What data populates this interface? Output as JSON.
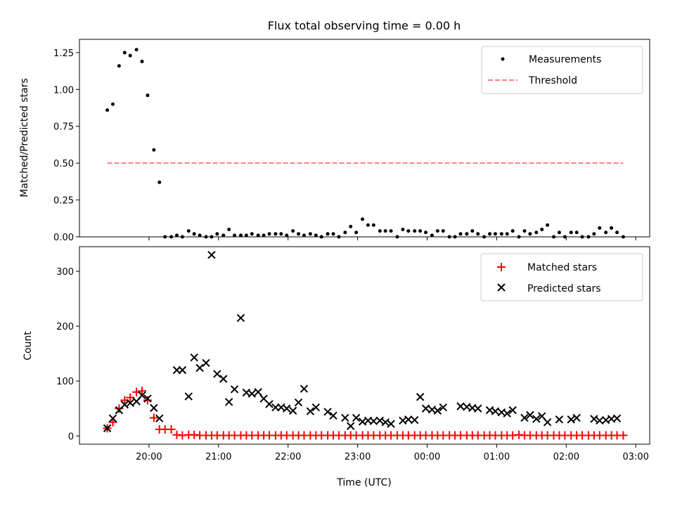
{
  "chart_data": [
    {
      "type": "scatter",
      "title": "Flux total observing time = 0.00 h",
      "xlabel": "",
      "ylabel": "Matched/Predicted stars",
      "ylim": [
        0,
        1.34
      ],
      "yticks": [
        0.0,
        0.25,
        0.5,
        0.75,
        1.0,
        1.25
      ],
      "yticklabels": [
        "0.00",
        "0.25",
        "0.50",
        "0.75",
        "1.00",
        "1.25"
      ],
      "xlim_hours": [
        19.0,
        27.2
      ],
      "xticks_hours": [
        20,
        21,
        22,
        23,
        24,
        25,
        26,
        27
      ],
      "legend_position": "top-right",
      "series": [
        {
          "name": "Measurements",
          "kind": "dots",
          "color": "#000000",
          "x": [
            19.4,
            19.48,
            19.57,
            19.65,
            19.73,
            19.82,
            19.9,
            19.98,
            20.07,
            20.15,
            20.23,
            20.32,
            20.4,
            20.48,
            20.57,
            20.65,
            20.73,
            20.82,
            20.9,
            20.98,
            21.07,
            21.15,
            21.23,
            21.32,
            21.4,
            21.48,
            21.57,
            21.65,
            21.73,
            21.82,
            21.9,
            21.98,
            22.07,
            22.15,
            22.23,
            22.32,
            22.4,
            22.48,
            22.57,
            22.65,
            22.73,
            22.82,
            22.9,
            22.98,
            23.07,
            23.15,
            23.23,
            23.32,
            23.4,
            23.48,
            23.57,
            23.65,
            23.73,
            23.82,
            23.9,
            23.98,
            24.07,
            24.15,
            24.23,
            24.32,
            24.4,
            24.48,
            24.57,
            24.65,
            24.73,
            24.82,
            24.9,
            24.98,
            25.07,
            25.15,
            25.23,
            25.32,
            25.4,
            25.48,
            25.57,
            25.65,
            25.73,
            25.82,
            25.9,
            25.98,
            26.07,
            26.15,
            26.23,
            26.32,
            26.4,
            26.48,
            26.57,
            26.65,
            26.73,
            26.82
          ],
          "y": [
            0.86,
            0.9,
            1.16,
            1.25,
            1.23,
            1.27,
            1.19,
            0.96,
            0.59,
            0.37,
            0.0,
            0.0,
            0.01,
            0.0,
            0.04,
            0.02,
            0.01,
            0.0,
            0.0,
            0.02,
            0.01,
            0.05,
            0.01,
            0.01,
            0.01,
            0.02,
            0.01,
            0.01,
            0.02,
            0.02,
            0.02,
            0.01,
            0.04,
            0.02,
            0.01,
            0.02,
            0.01,
            0.0,
            0.02,
            0.02,
            0.0,
            0.03,
            0.07,
            0.03,
            0.12,
            0.08,
            0.08,
            0.04,
            0.04,
            0.04,
            0.0,
            0.05,
            0.04,
            0.04,
            0.04,
            0.03,
            0.01,
            0.04,
            0.04,
            0.0,
            0.0,
            0.02,
            0.02,
            0.04,
            0.02,
            0.0,
            0.02,
            0.02,
            0.02,
            0.02,
            0.04,
            0.0,
            0.04,
            0.02,
            0.03,
            0.05,
            0.08,
            0.0,
            0.03,
            0.0,
            0.03,
            0.03,
            0.0,
            0.0,
            0.02,
            0.06,
            0.03,
            0.06,
            0.03,
            0.0
          ]
        },
        {
          "name": "Threshold",
          "kind": "dashed-line",
          "color": "#ff7f7f",
          "x": [
            19.4,
            26.82
          ],
          "y": [
            0.5,
            0.5
          ]
        }
      ]
    },
    {
      "type": "scatter",
      "title": "",
      "xlabel": "Time (UTC)",
      "ylabel": "Count",
      "ylim": [
        -15,
        345
      ],
      "yticks": [
        0,
        100,
        200,
        300
      ],
      "yticklabels": [
        "0",
        "100",
        "200",
        "300"
      ],
      "xlim_hours": [
        19.0,
        27.2
      ],
      "xticks_hours": [
        20,
        21,
        22,
        23,
        24,
        25,
        26,
        27
      ],
      "xticklabels": [
        "20:00",
        "21:00",
        "22:00",
        "23:00",
        "00:00",
        "01:00",
        "02:00",
        "03:00"
      ],
      "legend_position": "top-right",
      "series": [
        {
          "name": "Matched stars",
          "kind": "plus",
          "color": "#ff0000",
          "x": [
            19.4,
            19.48,
            19.57,
            19.65,
            19.73,
            19.82,
            19.9,
            19.98,
            20.07,
            20.15,
            20.23,
            20.32,
            20.4,
            20.48,
            20.57,
            20.65,
            20.73,
            20.82,
            20.9,
            20.98,
            21.07,
            21.15,
            21.23,
            21.32,
            21.4,
            21.48,
            21.57,
            21.65,
            21.73,
            21.82,
            21.9,
            21.98,
            22.07,
            22.15,
            22.23,
            22.32,
            22.4,
            22.48,
            22.57,
            22.65,
            22.73,
            22.82,
            22.9,
            22.98,
            23.07,
            23.15,
            23.23,
            23.32,
            23.4,
            23.48,
            23.57,
            23.65,
            23.73,
            23.82,
            23.9,
            23.98,
            24.07,
            24.15,
            24.23,
            24.32,
            24.4,
            24.48,
            24.57,
            24.65,
            24.73,
            24.82,
            24.9,
            24.98,
            25.07,
            25.15,
            25.23,
            25.32,
            25.4,
            25.48,
            25.57,
            25.65,
            25.73,
            25.82,
            25.9,
            25.98,
            26.07,
            26.15,
            26.23,
            26.32,
            26.4,
            26.48,
            26.57,
            26.65,
            26.73,
            26.82
          ],
          "y": [
            14,
            25,
            50,
            65,
            70,
            80,
            82,
            65,
            33,
            12,
            12,
            12,
            2,
            1,
            2,
            2,
            1,
            1,
            1,
            1,
            1,
            1,
            1,
            1,
            1,
            1,
            1,
            1,
            1,
            1,
            1,
            1,
            1,
            1,
            1,
            1,
            1,
            1,
            1,
            1,
            1,
            1,
            1,
            1,
            1,
            1,
            1,
            1,
            1,
            1,
            1,
            1,
            1,
            1,
            1,
            1,
            1,
            1,
            1,
            1,
            1,
            1,
            1,
            1,
            1,
            1,
            1,
            1,
            1,
            1,
            1,
            2,
            1,
            1,
            1,
            1,
            1,
            1,
            1,
            1,
            1,
            1,
            1,
            1,
            1,
            1,
            1,
            1,
            1,
            1
          ]
        },
        {
          "name": "Predicted stars",
          "kind": "x",
          "color": "#000000",
          "x": [
            19.4,
            19.48,
            19.57,
            19.65,
            19.73,
            19.82,
            19.9,
            19.98,
            20.07,
            20.15,
            20.4,
            20.48,
            20.57,
            20.65,
            20.73,
            20.82,
            20.9,
            20.98,
            21.07,
            21.15,
            21.23,
            21.32,
            21.4,
            21.48,
            21.57,
            21.65,
            21.73,
            21.82,
            21.9,
            21.98,
            22.07,
            22.15,
            22.23,
            22.32,
            22.4,
            22.57,
            22.65,
            22.82,
            22.9,
            22.98,
            23.07,
            23.15,
            23.23,
            23.32,
            23.4,
            23.48,
            23.65,
            23.73,
            23.82,
            23.9,
            23.98,
            24.07,
            24.15,
            24.23,
            24.48,
            24.57,
            24.65,
            24.73,
            24.9,
            24.98,
            25.07,
            25.15,
            25.23,
            25.4,
            25.48,
            25.57,
            25.65,
            25.73,
            25.9,
            26.07,
            26.15,
            26.4,
            26.48,
            26.57,
            26.65,
            26.73
          ],
          "y": [
            14,
            32,
            47,
            57,
            60,
            63,
            74,
            68,
            51,
            32,
            120,
            120,
            72,
            143,
            124,
            133,
            330,
            113,
            104,
            62,
            85,
            215,
            79,
            77,
            80,
            68,
            58,
            52,
            52,
            50,
            46,
            61,
            86,
            45,
            52,
            44,
            37,
            33,
            18,
            33,
            26,
            28,
            27,
            28,
            25,
            22,
            28,
            30,
            29,
            71,
            50,
            48,
            46,
            52,
            54,
            53,
            51,
            50,
            47,
            45,
            43,
            41,
            47,
            33,
            38,
            31,
            36,
            25,
            30,
            30,
            33,
            31,
            28,
            29,
            31,
            32
          ]
        }
      ]
    }
  ]
}
